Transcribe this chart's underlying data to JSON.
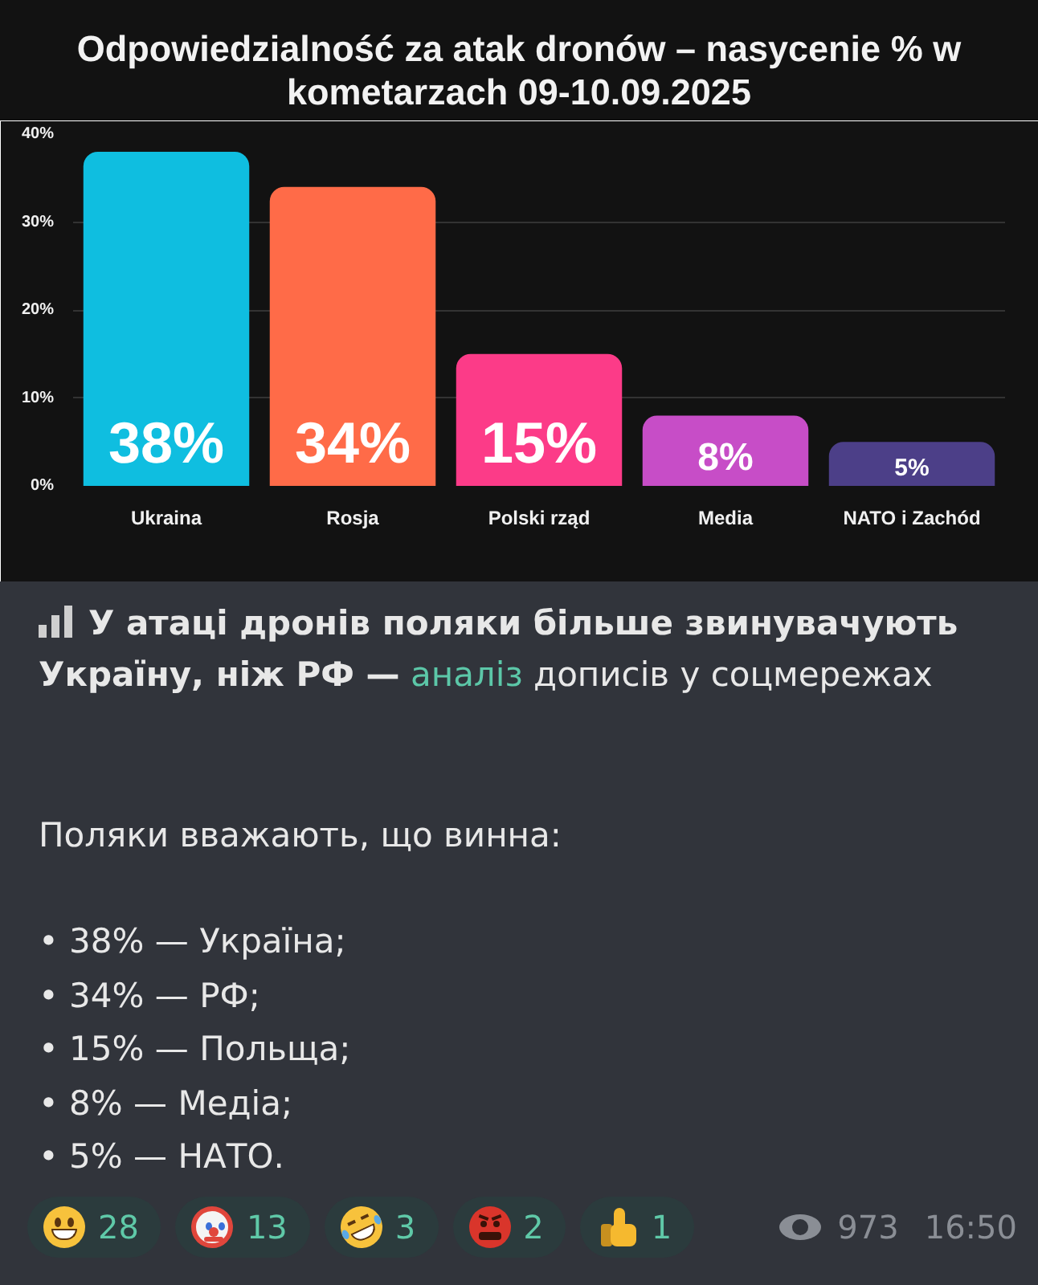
{
  "chart_data": {
    "type": "bar",
    "title": "Odpowiedzialność za atak dronów – nasycenie % w kometarzach 09-10.09.2025",
    "categories": [
      "Ukraina",
      "Rosja",
      "Polski rząd",
      "Media",
      "NATO i Zachód"
    ],
    "values": [
      38,
      34,
      15,
      8,
      5
    ],
    "colors": [
      "#0fbee0",
      "#ff6b48",
      "#fc3b88",
      "#c74dc7",
      "#4c3f88"
    ],
    "value_labels": [
      "38%",
      "34%",
      "15%",
      "8%",
      "5%"
    ],
    "ylim": [
      0,
      40
    ],
    "yticks": [
      {
        "value": 0,
        "label": "0%"
      },
      {
        "value": 10,
        "label": "10%"
      },
      {
        "value": 20,
        "label": "20%"
      },
      {
        "value": 30,
        "label": "30%"
      },
      {
        "value": 40,
        "label": "40%"
      }
    ],
    "grid": "y",
    "annotations": [
      "У атаці дронів поляки більше звинувачують",
      "Україну, ніж РФ —",
      "аналіз",
      "дописів у соцмережах",
      "Поляки вважають, що винна:",
      "• 38% — Україна;",
      "• 34% — РФ;",
      "• 15% — Польща;",
      "• 8% — Медіа;",
      "• 5% — НАТО.",
      "28",
      "13",
      "3",
      "2",
      "1",
      "973",
      "16:50"
    ]
  }
}
